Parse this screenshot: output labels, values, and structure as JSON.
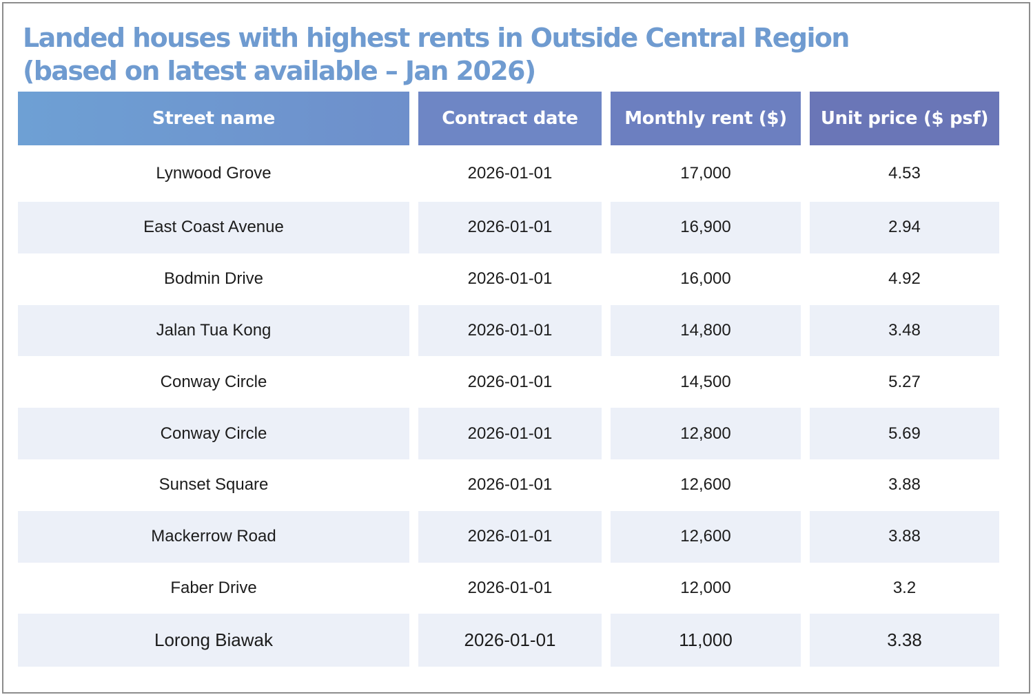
{
  "chart_data": {
    "type": "table",
    "title_lines": [
      "Landed houses with highest rents in Outside Central Region",
      "(based on latest available – Jan 2026)"
    ],
    "columns": [
      "Street name",
      "Contract date",
      "Monthly rent ($)",
      "Unit price ($ psf)"
    ],
    "rows": [
      [
        "Lynwood Grove",
        "2026-01-01",
        "17,000",
        "4.53"
      ],
      [
        "East Coast Avenue",
        "2026-01-01",
        "16,900",
        "2.94"
      ],
      [
        "Bodmin Drive",
        "2026-01-01",
        "16,000",
        "4.92"
      ],
      [
        "Jalan Tua Kong",
        "2026-01-01",
        "14,800",
        "3.48"
      ],
      [
        "Conway Circle",
        "2026-01-01",
        "14,500",
        "5.27"
      ],
      [
        "Conway Circle",
        "2026-01-01",
        "12,800",
        "5.69"
      ],
      [
        "Sunset Square",
        "2026-01-01",
        "12,600",
        "3.88"
      ],
      [
        "Mackerrow Road",
        "2026-01-01",
        "12,600",
        "3.88"
      ],
      [
        "Faber Drive",
        "2026-01-01",
        "12,000",
        "3.2"
      ],
      [
        "Lorong Biawak",
        "2026-01-01",
        "11,000",
        "3.38"
      ]
    ],
    "colors": {
      "title": "#6f9bd0",
      "header_start": "#6ea0d4",
      "header_end": "#6a76b7",
      "row_alt": "#ecf0f8"
    }
  }
}
